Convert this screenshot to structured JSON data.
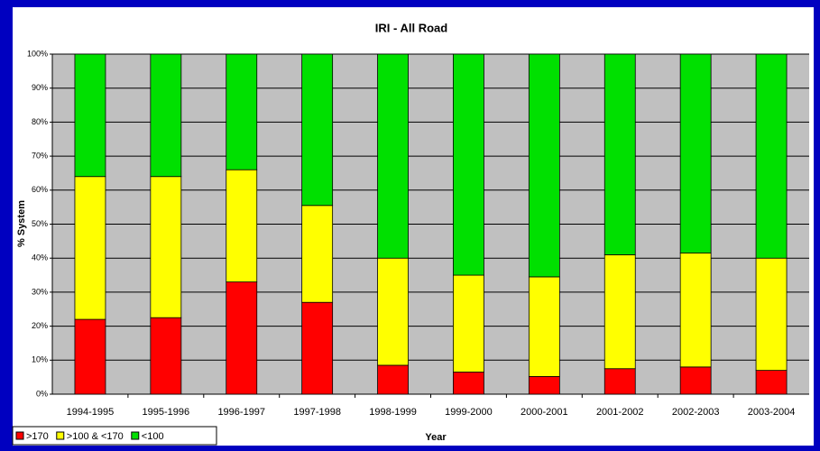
{
  "chart_data": {
    "type": "stacked_bar",
    "title": "IRI - All Road",
    "x_label": "Year",
    "y_label": "% System",
    "categories": [
      "1994-1995",
      "1995-1996",
      "1996-1997",
      "1997-1998",
      "1998-1999",
      "1999-2000",
      "2000-2001",
      "2001-2002",
      "2002-2003",
      "2003-2004"
    ],
    "series": [
      {
        "name": ">170",
        "color": "#ff0000",
        "values": [
          22,
          22.5,
          33,
          27,
          8.5,
          6.5,
          5.2,
          7.5,
          8,
          7
        ]
      },
      {
        "name": ">100 & <170",
        "color": "#ffff00",
        "values": [
          42,
          41.5,
          33,
          28.5,
          31.5,
          28.5,
          29.3,
          33.5,
          33.5,
          33
        ]
      },
      {
        "name": "<100",
        "color": "#00e000",
        "values": [
          36,
          36,
          34,
          44.5,
          60,
          65,
          65.5,
          59,
          58.5,
          60
        ]
      }
    ],
    "ylim": [
      0,
      100
    ],
    "yticks": [
      {
        "value": 0,
        "label": "0%"
      },
      {
        "value": 10,
        "label": "10%"
      },
      {
        "value": 20,
        "label": "20%"
      },
      {
        "value": 30,
        "label": "30%"
      },
      {
        "value": 40,
        "label": "40%"
      },
      {
        "value": 50,
        "label": "50%"
      },
      {
        "value": 60,
        "label": "60%"
      },
      {
        "value": 70,
        "label": "70%"
      },
      {
        "value": 80,
        "label": "80%"
      },
      {
        "value": 90,
        "label": "90%"
      },
      {
        "value": 100,
        "label": "100%"
      }
    ],
    "grid": true,
    "legend": "bottom-left"
  }
}
